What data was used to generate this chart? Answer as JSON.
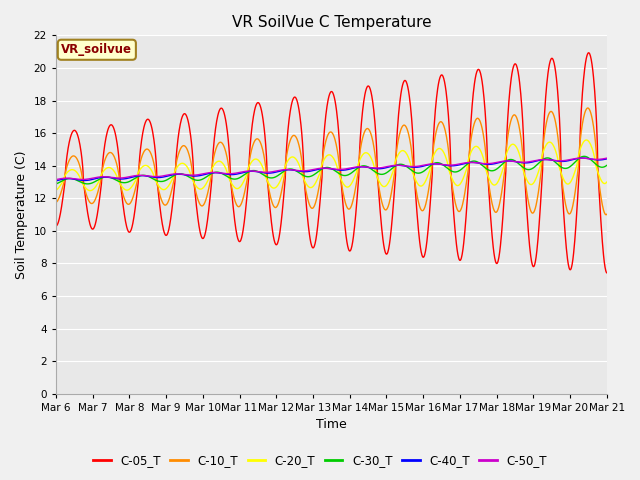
{
  "title": "VR SoilVue C Temperature",
  "xlabel": "Time",
  "ylabel": "Soil Temperature (C)",
  "ylim": [
    0,
    22
  ],
  "yticks": [
    0,
    2,
    4,
    6,
    8,
    10,
    12,
    14,
    16,
    18,
    20,
    22
  ],
  "x_labels": [
    "Mar 6",
    "Mar 7",
    "Mar 8",
    "Mar 9",
    "Mar 10",
    "Mar 11",
    "Mar 12",
    "Mar 13",
    "Mar 14",
    "Mar 15",
    "Mar 16",
    "Mar 17",
    "Mar 18",
    "Mar 19",
    "Mar 20",
    "Mar 21"
  ],
  "legend_label": "VR_soilvue",
  "series_labels": [
    "C-05_T",
    "C-10_T",
    "C-20_T",
    "C-30_T",
    "C-40_T",
    "C-50_T"
  ],
  "series_colors": [
    "#ff0000",
    "#ff8c00",
    "#ffff00",
    "#00cc00",
    "#0000ff",
    "#cc00cc"
  ],
  "background_color": "#f0f0f0",
  "plot_bg_color": "#e8e8e8",
  "grid_color": "#ffffff",
  "title_fontsize": 11,
  "axis_label_fontsize": 9,
  "tick_fontsize": 7.5,
  "legend_fontsize": 8.5
}
